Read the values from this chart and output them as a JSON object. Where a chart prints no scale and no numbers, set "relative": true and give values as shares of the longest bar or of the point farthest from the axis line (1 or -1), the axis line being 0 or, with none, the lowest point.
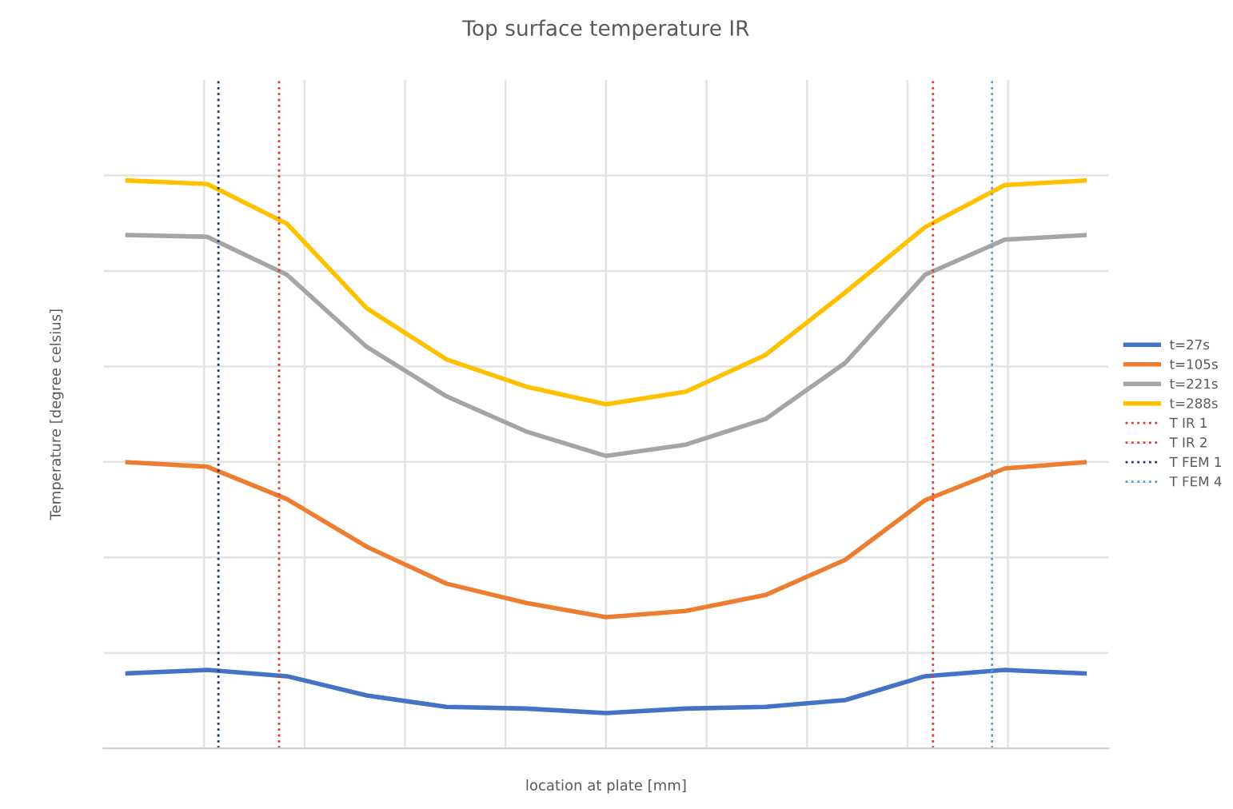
{
  "chart_data": {
    "type": "line",
    "title": "Top surface temperature IR",
    "xlabel": "location at plate [mm]",
    "ylabel": "Temperature [degree celsius]",
    "relative": true,
    "grid": true,
    "legend": "right",
    "line_style": "solid",
    "categories": [
      null,
      null,
      null,
      null,
      null,
      null,
      null,
      null,
      null,
      null,
      null,
      null,
      null
    ],
    "series": [
      {
        "name": "t=27s",
        "color": "#4472c4",
        "values": [
          0.132,
          0.138,
          0.127,
          0.093,
          0.073,
          0.07,
          0.062,
          0.07,
          0.073,
          0.085,
          0.127,
          0.138,
          0.132
        ]
      },
      {
        "name": "t=105s",
        "color": "#ed7d31",
        "values": [
          0.504,
          0.496,
          0.439,
          0.355,
          0.29,
          0.256,
          0.231,
          0.242,
          0.27,
          0.332,
          0.437,
          0.493,
          0.504
        ]
      },
      {
        "name": "t=221s",
        "color": "#a5a5a5",
        "values": [
          0.904,
          0.901,
          0.834,
          0.707,
          0.62,
          0.558,
          0.515,
          0.535,
          0.58,
          0.679,
          0.834,
          0.896,
          0.904
        ]
      },
      {
        "name": "t=288s",
        "color": "#ffc000",
        "values": [
          1.0,
          0.994,
          0.924,
          0.775,
          0.685,
          0.637,
          0.606,
          0.628,
          0.693,
          0.803,
          0.918,
          0.992,
          1.0
        ]
      }
    ],
    "ref_lines": [
      {
        "axis": "x",
        "label": "T IR 1",
        "color": "#e0393b",
        "line_style": "dotted"
      },
      {
        "axis": "x",
        "label": "T IR 2",
        "color": "#e0393b",
        "line_style": "dotted"
      },
      {
        "axis": "x",
        "label": "T FEM 1",
        "color": "#203864",
        "line_style": "dotted"
      },
      {
        "axis": "x",
        "label": "T FEM 4",
        "color": "#5b9bd5",
        "line_style": "dotted"
      }
    ]
  }
}
